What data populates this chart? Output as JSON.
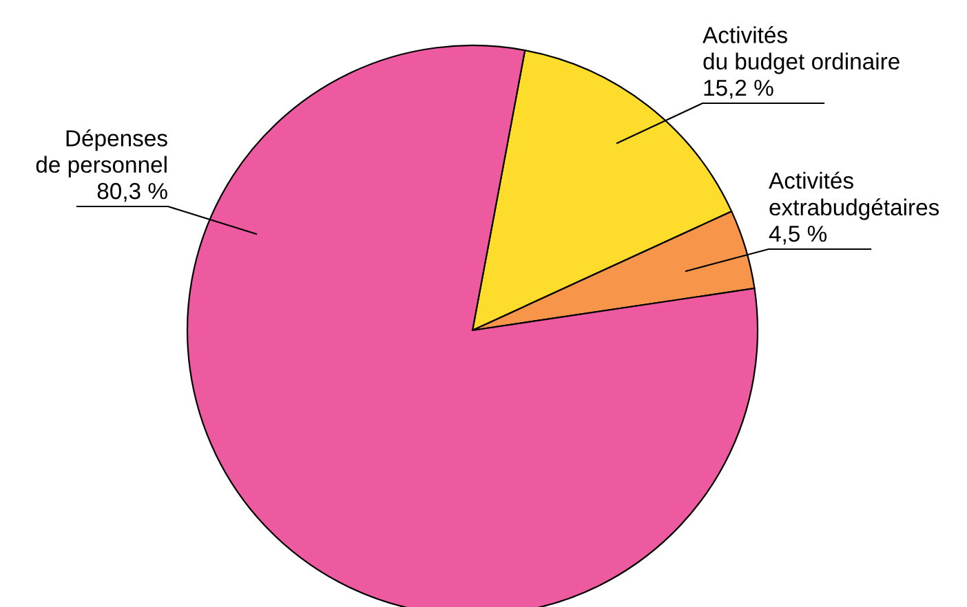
{
  "chart_data": {
    "type": "pie",
    "categories": [
      "Activités\ndu budget ordinaire",
      "Activités\nextrabudgétaires",
      "Dépenses\nde personnel"
    ],
    "values": [
      15.2,
      4.5,
      80.3
    ],
    "value_labels": [
      "15,2 %",
      "4,5 %",
      "80,3 %"
    ],
    "colors": [
      "#fddc2b",
      "#f7964a",
      "#ee5aa0"
    ]
  }
}
